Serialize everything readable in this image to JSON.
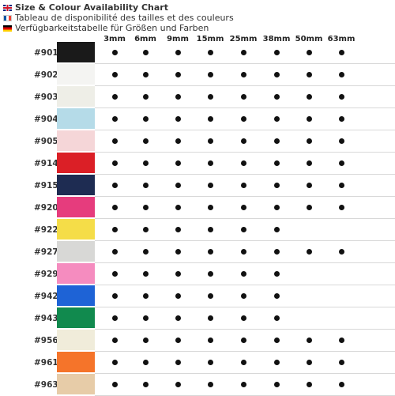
{
  "titles": {
    "en": "Size & Colour Availability Chart",
    "fr": "Tableau de disponibilité des tailles et des couleurs",
    "de": "Verfügbarkeitstabelle für Größen und Farben"
  },
  "flags": [
    "uk-flag-icon",
    "france-flag-icon",
    "germany-flag-icon"
  ],
  "sizes": [
    "3mm",
    "6mm",
    "9mm",
    "15mm",
    "25mm",
    "38mm",
    "50mm",
    "63mm"
  ],
  "rows": [
    {
      "code": "#901",
      "color": "#1a1a1a",
      "avail": [
        1,
        1,
        1,
        1,
        1,
        1,
        1,
        1
      ]
    },
    {
      "code": "#902",
      "color": "#f4f4f2",
      "avail": [
        1,
        1,
        1,
        1,
        1,
        1,
        1,
        1
      ]
    },
    {
      "code": "#903",
      "color": "#eeeee7",
      "avail": [
        1,
        1,
        1,
        1,
        1,
        1,
        1,
        1
      ]
    },
    {
      "code": "#904",
      "color": "#b5dbe8",
      "avail": [
        1,
        1,
        1,
        1,
        1,
        1,
        1,
        1
      ]
    },
    {
      "code": "#905",
      "color": "#f5d6d8",
      "avail": [
        1,
        1,
        1,
        1,
        1,
        1,
        1,
        1
      ]
    },
    {
      "code": "#914",
      "color": "#db1f26",
      "avail": [
        1,
        1,
        1,
        1,
        1,
        1,
        1,
        1
      ]
    },
    {
      "code": "#915",
      "color": "#1e2c52",
      "avail": [
        1,
        1,
        1,
        1,
        1,
        1,
        1,
        1
      ]
    },
    {
      "code": "#920",
      "color": "#e63c7d",
      "avail": [
        1,
        1,
        1,
        1,
        1,
        1,
        1,
        1
      ]
    },
    {
      "code": "#922",
      "color": "#f5dd48",
      "avail": [
        1,
        1,
        1,
        1,
        1,
        1,
        0,
        0
      ]
    },
    {
      "code": "#927",
      "color": "#d8d8d6",
      "avail": [
        1,
        1,
        1,
        1,
        1,
        1,
        1,
        1
      ]
    },
    {
      "code": "#929",
      "color": "#f58cbf",
      "avail": [
        1,
        1,
        1,
        1,
        1,
        1,
        0,
        0
      ]
    },
    {
      "code": "#942",
      "color": "#1e63d6",
      "avail": [
        1,
        1,
        1,
        1,
        1,
        1,
        0,
        0
      ]
    },
    {
      "code": "#943",
      "color": "#118a4e",
      "avail": [
        1,
        1,
        1,
        1,
        1,
        1,
        0,
        0
      ]
    },
    {
      "code": "#956",
      "color": "#f0ecda",
      "avail": [
        1,
        1,
        1,
        1,
        1,
        1,
        1,
        1
      ]
    },
    {
      "code": "#961",
      "color": "#f5742a",
      "avail": [
        1,
        1,
        1,
        1,
        1,
        1,
        1,
        1
      ]
    },
    {
      "code": "#963",
      "color": "#e7cca8",
      "avail": [
        1,
        1,
        1,
        1,
        1,
        1,
        1,
        1
      ]
    }
  ]
}
